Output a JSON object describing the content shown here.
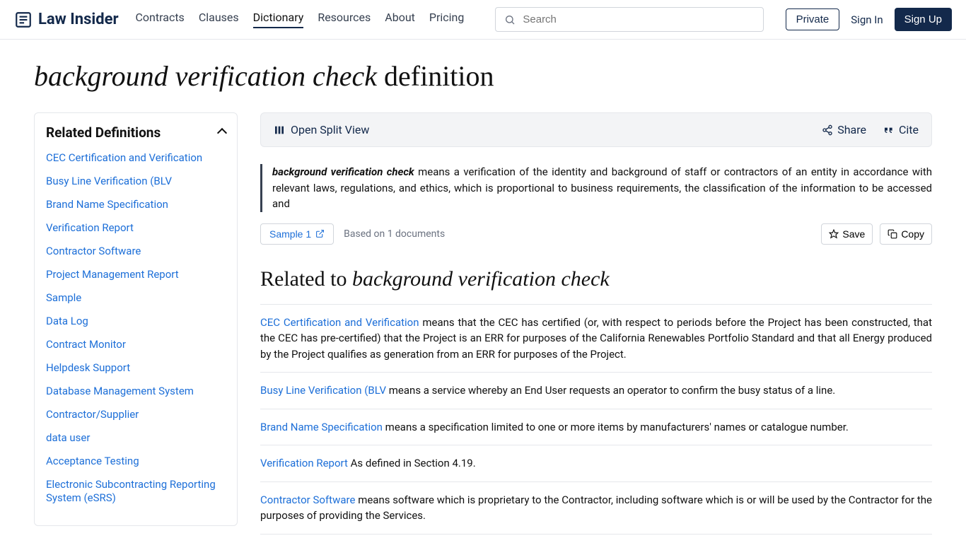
{
  "brand": "Law Insider",
  "nav": {
    "items": [
      "Contracts",
      "Clauses",
      "Dictionary",
      "Resources",
      "About",
      "Pricing"
    ],
    "active_index": 2
  },
  "search": {
    "placeholder": "Search"
  },
  "header_actions": {
    "private": "Private",
    "signin": "Sign In",
    "signup": "Sign Up"
  },
  "page": {
    "term": "background verification check",
    "suffix": " definition"
  },
  "sidebar": {
    "title": "Related Definitions",
    "items": [
      "CEC Certification and Verification",
      "Busy Line Verification (BLV",
      "Brand Name Specification",
      "Verification Report",
      "Contractor Software",
      "Project Management Report",
      "Sample",
      "Data Log",
      "Contract Monitor",
      "Helpdesk Support",
      "Database Management System",
      "Contractor/Supplier",
      "data user",
      "Acceptance Testing",
      "Electronic Subcontracting Reporting System (eSRS)"
    ]
  },
  "toolbar": {
    "open_split": "Open Split View",
    "share": "Share",
    "cite": "Cite"
  },
  "definition": {
    "term": "background verification check",
    "text": " means a verification of the identity and background of staff or contractors of an entity in accordance with relevant laws, regulations, and ethics, which is proportional to business requirements, the classification of the information to be accessed and",
    "sample_label": "Sample 1",
    "based_on": "Based on 1 documents",
    "save": "Save",
    "copy": "Copy"
  },
  "related": {
    "prefix": "Related to ",
    "term": "background verification check",
    "items": [
      {
        "link": "CEC Certification and Verification",
        "text": " means that the CEC has certified (or, with respect to periods before the Project has been constructed, that the CEC has pre-certified) that the Project is an ERR for purposes of the California Renewables Portfolio Standard and that all Energy produced by the Project qualifies as generation from an ERR for purposes of the Project."
      },
      {
        "link": "Busy Line Verification (BLV",
        "text": " means a service whereby an End User requests an operator to confirm the busy status of a line."
      },
      {
        "link": "Brand Name Specification",
        "text": " means a specification limited to one or more items by manufacturers' names or catalogue number."
      },
      {
        "link": "Verification Report",
        "text": " As defined in Section 4.19."
      },
      {
        "link": "Contractor Software",
        "text": " means software which is proprietary to the Contractor, including software which is or will be used by the Contractor for the purposes of providing the Services."
      }
    ]
  },
  "colors": {
    "brand": "#13294b",
    "link": "#1d6fd8",
    "border": "#e5e7eb",
    "muted": "#6b7280",
    "toolbar_bg": "#f3f4f6"
  }
}
